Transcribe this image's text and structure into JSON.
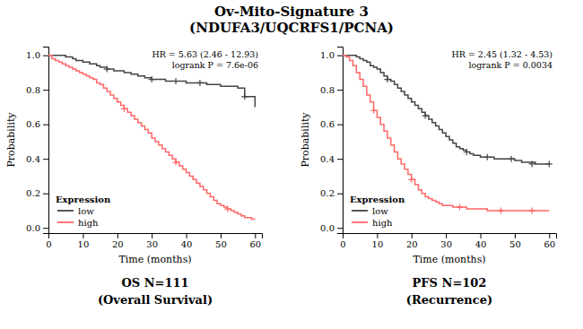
{
  "title": "Ov-Mito-Signature 3",
  "subtitle": "(NDUFA3/UQCRFS1/PCNA)",
  "chart_data": [
    {
      "type": "step",
      "title": "OS N=111",
      "subtitle": "(Overall Survival)",
      "xlabel": "Time (months)",
      "ylabel": "Probability",
      "xlim": [
        0,
        62
      ],
      "ylim": [
        -0.03,
        1.05
      ],
      "xticks": [
        0,
        10,
        20,
        30,
        40,
        50,
        60
      ],
      "yticks": [
        {
          "value": 0.0,
          "label": "0.0"
        },
        0.2,
        0.4,
        0.6,
        0.8,
        {
          "value": 1.0,
          "label": "1.0"
        }
      ],
      "grid": false,
      "legend": "lower left",
      "legend_title": "Expression",
      "annotations": [
        "HR = 5.63 (2.46 - 12.93)",
        "logrank P = 7.6e-06"
      ],
      "series": [
        {
          "name": "low",
          "color": "#444444",
          "marker": "plus",
          "x": [
            0,
            1,
            2,
            3,
            5,
            7,
            8,
            10,
            12,
            14,
            15,
            17,
            18,
            19,
            20,
            22,
            24,
            25,
            26,
            27,
            28,
            30,
            32,
            34,
            36,
            38,
            40,
            41,
            42,
            44,
            46,
            48,
            50,
            52,
            55,
            57,
            60
          ],
          "values": [
            1.0,
            1.0,
            1.0,
            1.0,
            0.99,
            0.98,
            0.97,
            0.96,
            0.95,
            0.94,
            0.93,
            0.92,
            0.92,
            0.91,
            0.91,
            0.9,
            0.89,
            0.89,
            0.88,
            0.88,
            0.87,
            0.86,
            0.86,
            0.85,
            0.85,
            0.85,
            0.84,
            0.84,
            0.84,
            0.84,
            0.83,
            0.83,
            0.82,
            0.82,
            0.81,
            0.76,
            0.7
          ],
          "censor_x": [
            17,
            30,
            37,
            44,
            57
          ],
          "censor_values": [
            0.92,
            0.86,
            0.85,
            0.84,
            0.76
          ]
        },
        {
          "name": "high",
          "color": "#FF6666",
          "marker": "plus",
          "x": [
            0,
            1,
            2,
            3,
            4,
            5,
            6,
            7,
            8,
            9,
            10,
            11,
            12,
            13,
            14,
            15,
            16,
            17,
            18,
            19,
            20,
            21,
            22,
            23,
            24,
            25,
            26,
            27,
            28,
            29,
            30,
            31,
            32,
            33,
            34,
            35,
            36,
            37,
            38,
            39,
            40,
            41,
            42,
            43,
            44,
            45,
            46,
            47,
            48,
            49,
            50,
            51,
            52,
            53,
            54,
            55,
            56,
            57,
            58,
            59,
            60
          ],
          "values": [
            1.0,
            0.98,
            0.97,
            0.96,
            0.95,
            0.94,
            0.93,
            0.92,
            0.91,
            0.9,
            0.89,
            0.88,
            0.87,
            0.86,
            0.84,
            0.83,
            0.81,
            0.79,
            0.77,
            0.75,
            0.73,
            0.71,
            0.69,
            0.67,
            0.65,
            0.63,
            0.61,
            0.59,
            0.57,
            0.55,
            0.52,
            0.5,
            0.48,
            0.46,
            0.44,
            0.42,
            0.4,
            0.38,
            0.36,
            0.34,
            0.32,
            0.3,
            0.28,
            0.26,
            0.24,
            0.22,
            0.2,
            0.18,
            0.16,
            0.14,
            0.13,
            0.12,
            0.11,
            0.1,
            0.09,
            0.08,
            0.07,
            0.06,
            0.06,
            0.05,
            0.05
          ],
          "censor_x": [
            22,
            37,
            52
          ],
          "censor_values": [
            0.69,
            0.38,
            0.11
          ]
        }
      ]
    },
    {
      "type": "step",
      "title": "PFS N=102",
      "subtitle": "(Recurrence)",
      "xlabel": "Time (months)",
      "ylabel": "Probability",
      "xlim": [
        0,
        62
      ],
      "ylim": [
        -0.03,
        1.05
      ],
      "xticks": [
        0,
        10,
        20,
        30,
        40,
        50,
        60
      ],
      "yticks": [
        {
          "value": 0.0,
          "label": "0.0"
        },
        0.2,
        0.4,
        0.6,
        0.8,
        {
          "value": 1.0,
          "label": "1.0"
        }
      ],
      "grid": false,
      "legend": "lower left",
      "legend_title": "Expression",
      "annotations": [
        "HR = 2.45 (1.32 - 4.53)",
        "logrank P = 0.0034"
      ],
      "series": [
        {
          "name": "low",
          "color": "#444444",
          "marker": "plus",
          "x": [
            0,
            1,
            2,
            3,
            4,
            5,
            6,
            7,
            8,
            9,
            10,
            11,
            12,
            13,
            14,
            15,
            16,
            17,
            18,
            19,
            20,
            21,
            22,
            23,
            24,
            25,
            26,
            27,
            28,
            29,
            30,
            31,
            32,
            33,
            34,
            35,
            36,
            37,
            38,
            39,
            40,
            42,
            44,
            46,
            48,
            50,
            52,
            54,
            56,
            58,
            60
          ],
          "values": [
            1.0,
            1.0,
            1.0,
            1.0,
            0.99,
            0.98,
            0.97,
            0.96,
            0.94,
            0.93,
            0.92,
            0.9,
            0.88,
            0.86,
            0.85,
            0.83,
            0.81,
            0.79,
            0.77,
            0.75,
            0.73,
            0.71,
            0.69,
            0.67,
            0.65,
            0.63,
            0.61,
            0.59,
            0.57,
            0.55,
            0.53,
            0.51,
            0.49,
            0.47,
            0.46,
            0.45,
            0.44,
            0.43,
            0.42,
            0.42,
            0.41,
            0.41,
            0.4,
            0.4,
            0.4,
            0.39,
            0.38,
            0.38,
            0.37,
            0.37,
            0.37
          ],
          "censor_x": [
            13,
            24,
            36,
            42,
            49,
            55,
            60
          ],
          "censor_values": [
            0.86,
            0.65,
            0.44,
            0.41,
            0.4,
            0.37,
            0.37
          ]
        },
        {
          "name": "high",
          "color": "#FF6666",
          "marker": "plus",
          "x": [
            0,
            1,
            2,
            3,
            4,
            5,
            6,
            7,
            8,
            9,
            10,
            11,
            12,
            13,
            14,
            15,
            16,
            17,
            18,
            19,
            20,
            21,
            22,
            23,
            24,
            25,
            26,
            27,
            28,
            29,
            30,
            32,
            34,
            36,
            38,
            40,
            42,
            44,
            46,
            50,
            55,
            60
          ],
          "values": [
            1.0,
            0.99,
            0.97,
            0.94,
            0.9,
            0.86,
            0.82,
            0.77,
            0.73,
            0.68,
            0.64,
            0.6,
            0.56,
            0.52,
            0.48,
            0.44,
            0.4,
            0.37,
            0.34,
            0.31,
            0.28,
            0.25,
            0.22,
            0.2,
            0.18,
            0.17,
            0.16,
            0.15,
            0.14,
            0.13,
            0.13,
            0.12,
            0.12,
            0.11,
            0.11,
            0.11,
            0.1,
            0.1,
            0.1,
            0.1,
            0.1,
            0.1
          ],
          "censor_x": [
            9,
            20,
            34,
            46,
            55
          ],
          "censor_values": [
            0.68,
            0.28,
            0.12,
            0.1,
            0.1
          ]
        }
      ]
    }
  ]
}
